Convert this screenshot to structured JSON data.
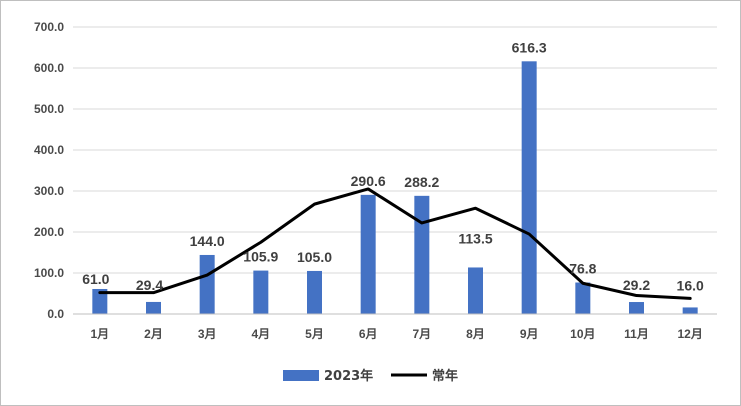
{
  "chart_data": {
    "type": "bar",
    "title": "",
    "xlabel": "",
    "ylabel": "",
    "categories": [
      "1月",
      "2月",
      "3月",
      "4月",
      "5月",
      "6月",
      "7月",
      "8月",
      "9月",
      "10月",
      "11月",
      "12月"
    ],
    "ylim": [
      0,
      700
    ],
    "yticks": [
      "0.0",
      "100.0",
      "200.0",
      "300.0",
      "400.0",
      "500.0",
      "600.0",
      "700.0"
    ],
    "grid": true,
    "legend_position": "bottom",
    "series": [
      {
        "name": "2023年",
        "kind": "bar",
        "color": "#4472c4",
        "values": [
          61.0,
          29.4,
          144.0,
          105.9,
          105.0,
          290.6,
          288.2,
          113.5,
          616.3,
          76.8,
          29.2,
          16.0
        ],
        "labels": [
          "61.0",
          "29.4",
          "144.0",
          "105.9",
          "105.0",
          "290.6",
          "288.2",
          "113.5",
          "616.3",
          "76.8",
          "29.2",
          "16.0"
        ]
      },
      {
        "name": "常年",
        "kind": "line",
        "color": "#000000",
        "values": [
          52,
          52,
          95,
          175,
          268,
          305,
          222,
          258,
          195,
          75,
          45,
          38
        ]
      }
    ]
  }
}
